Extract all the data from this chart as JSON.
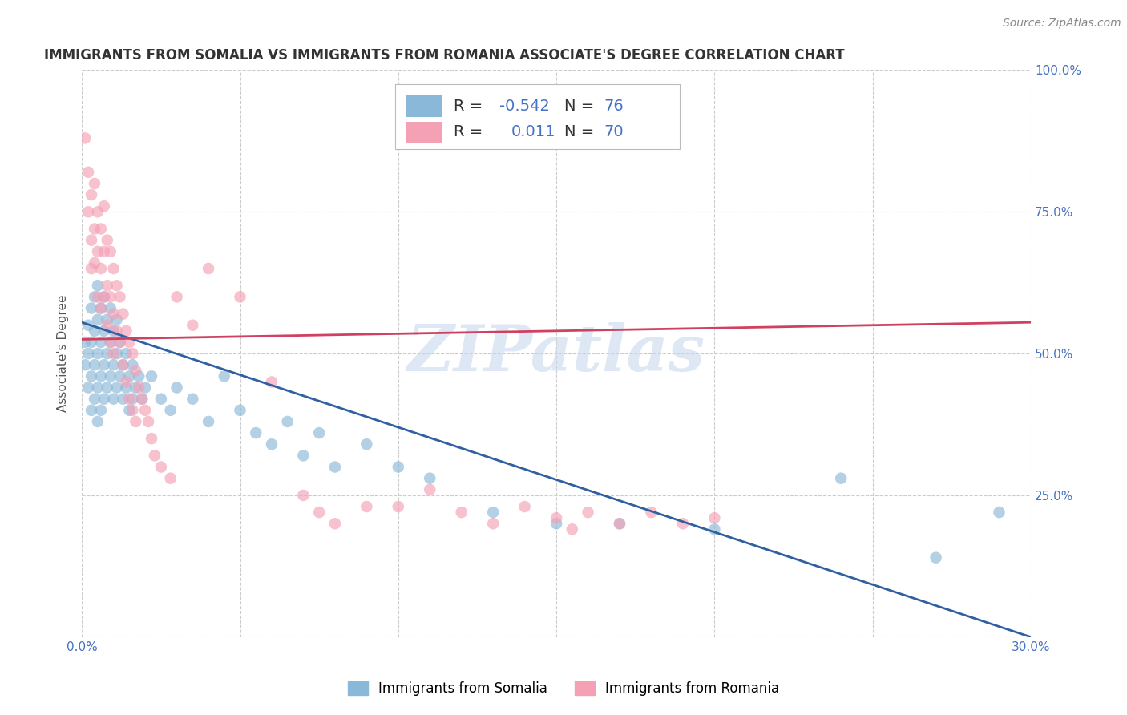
{
  "title": "IMMIGRANTS FROM SOMALIA VS IMMIGRANTS FROM ROMANIA ASSOCIATE'S DEGREE CORRELATION CHART",
  "source": "Source: ZipAtlas.com",
  "ylabel": "Associate's Degree",
  "xlim": [
    0.0,
    0.3
  ],
  "ylim": [
    0.0,
    1.0
  ],
  "xticks": [
    0.0,
    0.05,
    0.1,
    0.15,
    0.2,
    0.25,
    0.3
  ],
  "xticklabels": [
    "0.0%",
    "",
    "",
    "",
    "",
    "",
    "30.0%"
  ],
  "yticks": [
    0.0,
    0.25,
    0.5,
    0.75,
    1.0
  ],
  "yticklabels": [
    "",
    "25.0%",
    "50.0%",
    "75.0%",
    "100.0%"
  ],
  "somalia_color": "#8ab8d8",
  "romania_color": "#f4a0b5",
  "somalia_line_color": "#3060a0",
  "romania_line_color": "#d04060",
  "somalia_R": -0.542,
  "somalia_N": 76,
  "romania_R": 0.011,
  "romania_N": 70,
  "legend_label_somalia": "Immigrants from Somalia",
  "legend_label_romania": "Immigrants from Romania",
  "watermark": "ZIPatlas",
  "background_color": "#ffffff",
  "legend_text_color": "#4472c4",
  "somalia_trend": [
    0.0,
    0.3,
    0.555,
    0.0
  ],
  "romania_trend": [
    0.0,
    0.3,
    0.525,
    0.555
  ],
  "somalia_points": [
    [
      0.001,
      0.52
    ],
    [
      0.001,
      0.48
    ],
    [
      0.002,
      0.55
    ],
    [
      0.002,
      0.5
    ],
    [
      0.002,
      0.44
    ],
    [
      0.003,
      0.58
    ],
    [
      0.003,
      0.52
    ],
    [
      0.003,
      0.46
    ],
    [
      0.003,
      0.4
    ],
    [
      0.004,
      0.6
    ],
    [
      0.004,
      0.54
    ],
    [
      0.004,
      0.48
    ],
    [
      0.004,
      0.42
    ],
    [
      0.005,
      0.62
    ],
    [
      0.005,
      0.56
    ],
    [
      0.005,
      0.5
    ],
    [
      0.005,
      0.44
    ],
    [
      0.005,
      0.38
    ],
    [
      0.006,
      0.58
    ],
    [
      0.006,
      0.52
    ],
    [
      0.006,
      0.46
    ],
    [
      0.006,
      0.4
    ],
    [
      0.007,
      0.6
    ],
    [
      0.007,
      0.54
    ],
    [
      0.007,
      0.48
    ],
    [
      0.007,
      0.42
    ],
    [
      0.008,
      0.56
    ],
    [
      0.008,
      0.5
    ],
    [
      0.008,
      0.44
    ],
    [
      0.009,
      0.58
    ],
    [
      0.009,
      0.52
    ],
    [
      0.009,
      0.46
    ],
    [
      0.01,
      0.54
    ],
    [
      0.01,
      0.48
    ],
    [
      0.01,
      0.42
    ],
    [
      0.011,
      0.56
    ],
    [
      0.011,
      0.5
    ],
    [
      0.011,
      0.44
    ],
    [
      0.012,
      0.52
    ],
    [
      0.012,
      0.46
    ],
    [
      0.013,
      0.48
    ],
    [
      0.013,
      0.42
    ],
    [
      0.014,
      0.5
    ],
    [
      0.014,
      0.44
    ],
    [
      0.015,
      0.46
    ],
    [
      0.015,
      0.4
    ],
    [
      0.016,
      0.48
    ],
    [
      0.016,
      0.42
    ],
    [
      0.017,
      0.44
    ],
    [
      0.018,
      0.46
    ],
    [
      0.019,
      0.42
    ],
    [
      0.02,
      0.44
    ],
    [
      0.022,
      0.46
    ],
    [
      0.025,
      0.42
    ],
    [
      0.028,
      0.4
    ],
    [
      0.03,
      0.44
    ],
    [
      0.035,
      0.42
    ],
    [
      0.04,
      0.38
    ],
    [
      0.045,
      0.46
    ],
    [
      0.05,
      0.4
    ],
    [
      0.055,
      0.36
    ],
    [
      0.06,
      0.34
    ],
    [
      0.065,
      0.38
    ],
    [
      0.07,
      0.32
    ],
    [
      0.075,
      0.36
    ],
    [
      0.08,
      0.3
    ],
    [
      0.09,
      0.34
    ],
    [
      0.1,
      0.3
    ],
    [
      0.11,
      0.28
    ],
    [
      0.13,
      0.22
    ],
    [
      0.15,
      0.2
    ],
    [
      0.17,
      0.2
    ],
    [
      0.2,
      0.19
    ],
    [
      0.24,
      0.28
    ],
    [
      0.27,
      0.14
    ],
    [
      0.29,
      0.22
    ]
  ],
  "romania_points": [
    [
      0.001,
      0.88
    ],
    [
      0.002,
      0.82
    ],
    [
      0.002,
      0.75
    ],
    [
      0.003,
      0.78
    ],
    [
      0.003,
      0.7
    ],
    [
      0.003,
      0.65
    ],
    [
      0.004,
      0.8
    ],
    [
      0.004,
      0.72
    ],
    [
      0.004,
      0.66
    ],
    [
      0.005,
      0.75
    ],
    [
      0.005,
      0.68
    ],
    [
      0.005,
      0.6
    ],
    [
      0.006,
      0.72
    ],
    [
      0.006,
      0.65
    ],
    [
      0.006,
      0.58
    ],
    [
      0.007,
      0.76
    ],
    [
      0.007,
      0.68
    ],
    [
      0.007,
      0.6
    ],
    [
      0.008,
      0.7
    ],
    [
      0.008,
      0.62
    ],
    [
      0.008,
      0.55
    ],
    [
      0.009,
      0.68
    ],
    [
      0.009,
      0.6
    ],
    [
      0.009,
      0.52
    ],
    [
      0.01,
      0.65
    ],
    [
      0.01,
      0.57
    ],
    [
      0.01,
      0.5
    ],
    [
      0.011,
      0.62
    ],
    [
      0.011,
      0.54
    ],
    [
      0.012,
      0.6
    ],
    [
      0.012,
      0.52
    ],
    [
      0.013,
      0.57
    ],
    [
      0.013,
      0.48
    ],
    [
      0.014,
      0.54
    ],
    [
      0.014,
      0.45
    ],
    [
      0.015,
      0.52
    ],
    [
      0.015,
      0.42
    ],
    [
      0.016,
      0.5
    ],
    [
      0.016,
      0.4
    ],
    [
      0.017,
      0.47
    ],
    [
      0.017,
      0.38
    ],
    [
      0.018,
      0.44
    ],
    [
      0.019,
      0.42
    ],
    [
      0.02,
      0.4
    ],
    [
      0.021,
      0.38
    ],
    [
      0.022,
      0.35
    ],
    [
      0.023,
      0.32
    ],
    [
      0.025,
      0.3
    ],
    [
      0.028,
      0.28
    ],
    [
      0.03,
      0.6
    ],
    [
      0.035,
      0.55
    ],
    [
      0.04,
      0.65
    ],
    [
      0.05,
      0.6
    ],
    [
      0.06,
      0.45
    ],
    [
      0.07,
      0.25
    ],
    [
      0.075,
      0.22
    ],
    [
      0.08,
      0.2
    ],
    [
      0.09,
      0.23
    ],
    [
      0.1,
      0.23
    ],
    [
      0.11,
      0.26
    ],
    [
      0.12,
      0.22
    ],
    [
      0.13,
      0.2
    ],
    [
      0.14,
      0.23
    ],
    [
      0.15,
      0.21
    ],
    [
      0.155,
      0.19
    ],
    [
      0.16,
      0.22
    ],
    [
      0.17,
      0.2
    ],
    [
      0.18,
      0.22
    ],
    [
      0.19,
      0.2
    ],
    [
      0.2,
      0.21
    ]
  ]
}
